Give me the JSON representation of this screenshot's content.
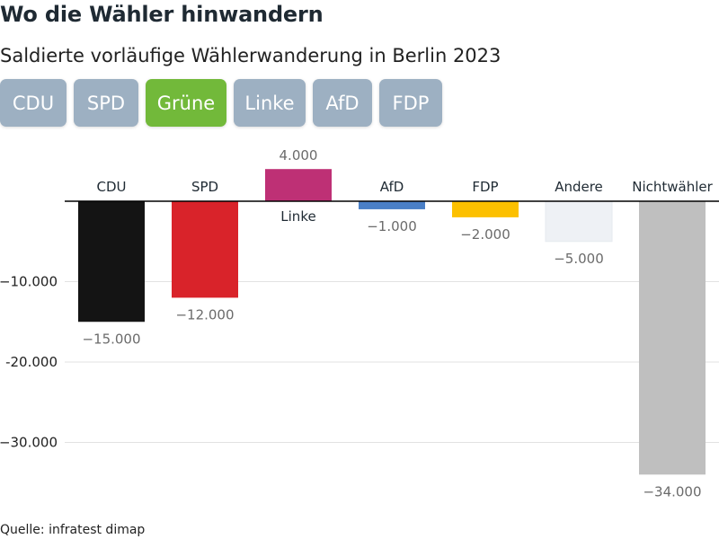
{
  "header": {
    "title": "Wo die Wähler hinwandern",
    "subtitle": "Saldierte vorläufige Wählerwanderung in Berlin 2023"
  },
  "tabs": [
    {
      "label": "CDU",
      "active": false
    },
    {
      "label": "SPD",
      "active": false
    },
    {
      "label": "Grüne",
      "active": true
    },
    {
      "label": "Linke",
      "active": false
    },
    {
      "label": "AfD",
      "active": false
    },
    {
      "label": "FDP",
      "active": false
    }
  ],
  "colors": {
    "tab_default": "#9db0c2",
    "tab_active": "#72b93a",
    "gridline": "#e2e2e2",
    "baseline": "#000000",
    "label_text": "#6b6b6b"
  },
  "chart_data": {
    "type": "bar",
    "categories": [
      "CDU",
      "SPD",
      "Linke",
      "AfD",
      "FDP",
      "Andere",
      "Nichtwähler"
    ],
    "values": [
      -15000,
      -12000,
      4000,
      -1000,
      -2000,
      -5000,
      -34000
    ],
    "value_labels": [
      "−15.000",
      "−12.000",
      "4.000",
      "−1.000",
      "−2.000",
      "−5.000",
      "−34.000"
    ],
    "colors": [
      "#141414",
      "#d9232a",
      "#be3075",
      "#4a7fc6",
      "#fcc000",
      "#eef1f5",
      "#bfbfbf"
    ],
    "yticks": [
      -10000,
      -20000,
      -30000
    ],
    "ytick_labels": [
      "−10.000",
      "-20.000",
      "−30.000"
    ],
    "ylim": [
      -34000,
      4000
    ],
    "grid": true,
    "title": "",
    "xlabel": "",
    "ylabel": ""
  },
  "footer": {
    "source": "Quelle: infratest dimap"
  }
}
